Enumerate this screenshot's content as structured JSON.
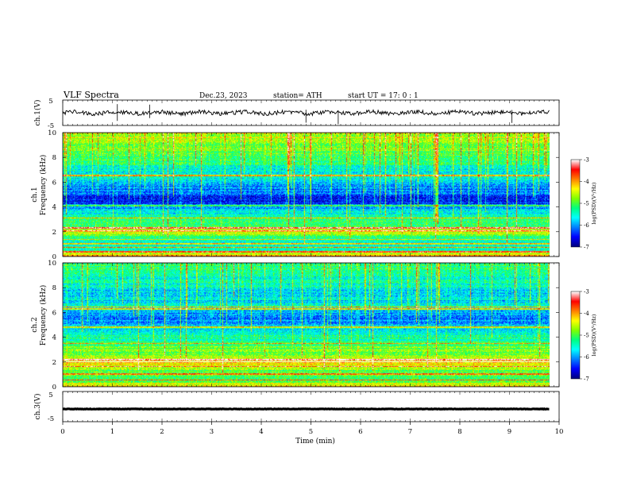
{
  "header": {
    "title": "VLF  Spectra",
    "date": "Dec.23, 2023",
    "station": "station= ATH",
    "start": "start  UT  =   17: 0  : 1"
  },
  "chart_data": [
    {
      "type": "line",
      "name": "ch1-waveform",
      "ylabel": "ch.1(V)",
      "ylim": [
        -5,
        5
      ],
      "yticks": [
        "5",
        "-5"
      ],
      "xlim": [
        0,
        10
      ],
      "x_end": 9.8,
      "baseline": 0,
      "spikes": [
        {
          "x": 1.1,
          "ymin": -3.2,
          "ymax": 3.4
        },
        {
          "x": 1.75,
          "ymin": -2.1,
          "ymax": 3.2
        },
        {
          "x": 4.9,
          "ymin": -3.9,
          "ymax": 1.2
        },
        {
          "x": 5.55,
          "ymin": -4.5,
          "ymax": 1.0
        },
        {
          "x": 9.05,
          "ymin": -4.0,
          "ymax": 1.1
        }
      ]
    },
    {
      "type": "heatmap",
      "name": "ch1-spectrogram",
      "ylabel_line1": "ch.1",
      "ylabel_line2": "Frequency  (kHz)",
      "ylim": [
        0,
        10
      ],
      "yticks": [
        "0",
        "2",
        "4",
        "6",
        "8",
        "10"
      ],
      "xlim": [
        0,
        10
      ],
      "x_end": 9.8,
      "colorbar": {
        "label": "log(PSD)(V²/Hz)",
        "range": [
          -7,
          -3
        ],
        "ticks": [
          "-3",
          "-4",
          "-5",
          "-6",
          "-7"
        ]
      },
      "profile_khz_logpsd": [
        [
          0,
          -4.0
        ],
        [
          0.5,
          -5.3
        ],
        [
          1.0,
          -5.6
        ],
        [
          1.5,
          -5.4
        ],
        [
          2.0,
          -4.3
        ],
        [
          2.5,
          -5.0
        ],
        [
          3.0,
          -5.2
        ],
        [
          3.5,
          -5.6
        ],
        [
          4.0,
          -6.1
        ],
        [
          4.5,
          -6.6
        ],
        [
          5.0,
          -6.3
        ],
        [
          5.5,
          -6.2
        ],
        [
          6.0,
          -6.0
        ],
        [
          6.5,
          -5.4
        ],
        [
          7.0,
          -5.6
        ],
        [
          7.5,
          -5.3
        ],
        [
          8.0,
          -5.1
        ],
        [
          8.5,
          -4.9
        ],
        [
          9.0,
          -4.8
        ],
        [
          9.5,
          -4.7
        ],
        [
          10.0,
          -4.6
        ]
      ],
      "lines_khz": [
        0.35,
        0.7,
        1.0,
        1.35,
        2.05,
        2.3,
        3.1,
        4.1,
        6.5,
        6.6
      ]
    },
    {
      "type": "heatmap",
      "name": "ch2-spectrogram",
      "ylabel_line1": "ch.2",
      "ylabel_line2": "Frequency  (kHz)",
      "ylim": [
        0,
        10
      ],
      "yticks": [
        "0",
        "2",
        "4",
        "6",
        "8",
        "10"
      ],
      "xlim": [
        0,
        10
      ],
      "x_end": 9.8,
      "colorbar": {
        "label": "log(PSD)(V²/Hz)",
        "range": [
          -7,
          -3
        ],
        "ticks": [
          "-3",
          "-4",
          "-5",
          "-6",
          "-7"
        ]
      },
      "profile_khz_logpsd": [
        [
          0,
          -4.2
        ],
        [
          0.5,
          -5.0
        ],
        [
          1.0,
          -5.0
        ],
        [
          1.5,
          -4.8
        ],
        [
          2.0,
          -4.1
        ],
        [
          2.5,
          -4.8
        ],
        [
          3.0,
          -4.9
        ],
        [
          3.5,
          -5.1
        ],
        [
          4.0,
          -5.4
        ],
        [
          4.5,
          -5.6
        ],
        [
          5.0,
          -5.9
        ],
        [
          5.5,
          -6.2
        ],
        [
          6.0,
          -6.0
        ],
        [
          6.5,
          -5.5
        ],
        [
          7.0,
          -5.8
        ],
        [
          7.5,
          -5.9
        ],
        [
          8.0,
          -5.6
        ],
        [
          8.5,
          -5.5
        ],
        [
          9.0,
          -5.4
        ],
        [
          9.5,
          -5.3
        ],
        [
          10.0,
          -5.2
        ]
      ],
      "lines_khz": [
        0.5,
        1.0,
        1.6,
        2.0,
        2.15,
        3.5,
        4.8,
        6.3,
        6.45
      ]
    },
    {
      "type": "line",
      "name": "ch3-waveform",
      "ylabel": "ch.3(V)",
      "ylim": [
        -5,
        5
      ],
      "yticks": [
        "5",
        "-5"
      ],
      "xlim": [
        0,
        10
      ],
      "x_end": 9.8,
      "baseline": -0.8,
      "spikes": [],
      "xlabel": "Time  (min)",
      "xticks": [
        "0",
        "1",
        "2",
        "3",
        "4",
        "5",
        "6",
        "7",
        "8",
        "9",
        "10"
      ]
    }
  ],
  "colors": {
    "colormap": [
      "#000080",
      "#0000ff",
      "#0080ff",
      "#00ffff",
      "#00ff80",
      "#80ff00",
      "#ffff00",
      "#ff8000",
      "#ff0000",
      "#ffffff"
    ]
  }
}
